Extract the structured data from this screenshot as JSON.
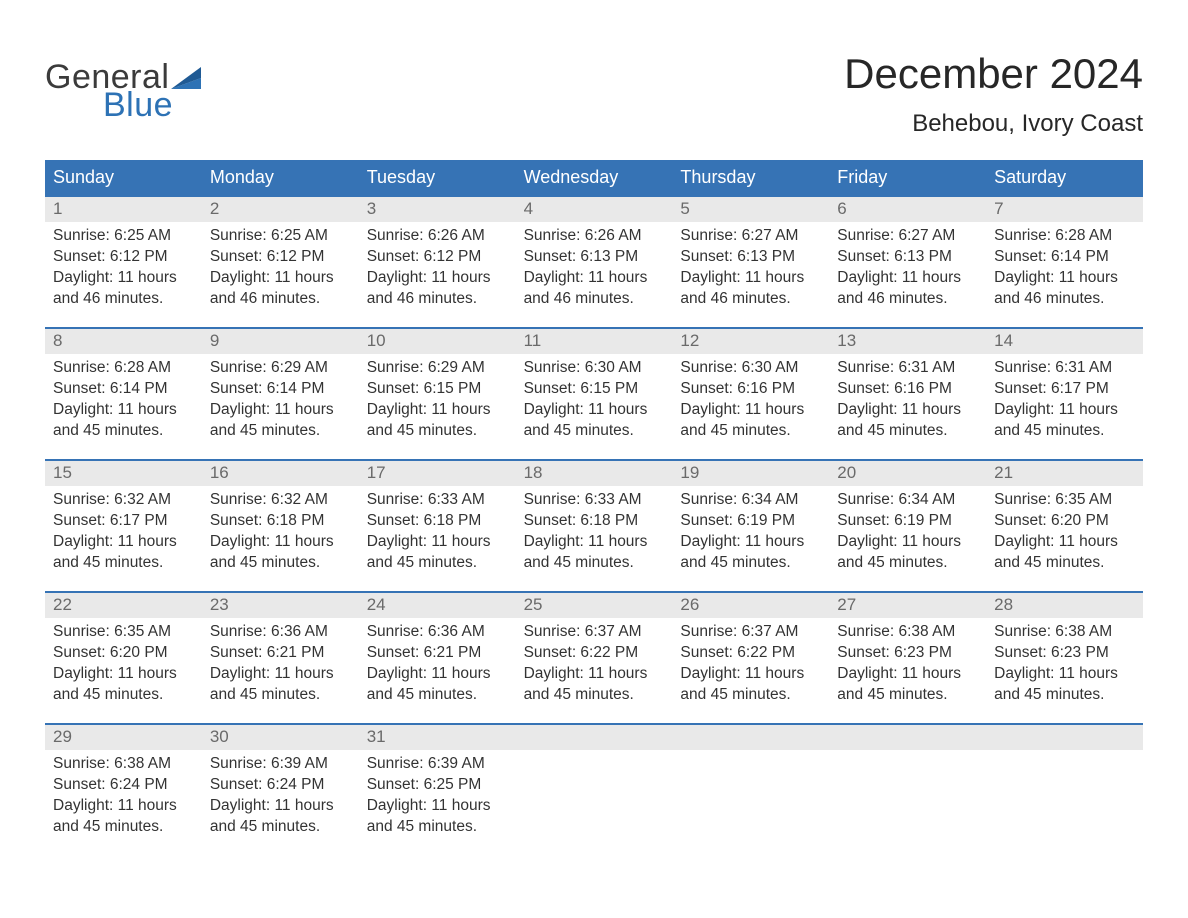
{
  "logo": {
    "word1": "General",
    "word2": "Blue",
    "color_dark": "#3b3b3b",
    "color_blue": "#2d72b5"
  },
  "title": {
    "month_year": "December 2024",
    "location": "Behebou, Ivory Coast"
  },
  "colors": {
    "header_bg": "#3673b5",
    "header_text": "#ffffff",
    "row_divider": "#3673b5",
    "daynum_bg": "#e9e9e9",
    "daynum_text": "#6a6a6a",
    "body_text": "#333333",
    "page_bg": "#ffffff"
  },
  "typography": {
    "title_fontsize": 42,
    "location_fontsize": 24,
    "weekday_fontsize": 18,
    "daynum_fontsize": 17,
    "body_fontsize": 15.5,
    "font_family": "Arial"
  },
  "weekdays": [
    "Sunday",
    "Monday",
    "Tuesday",
    "Wednesday",
    "Thursday",
    "Friday",
    "Saturday"
  ],
  "labels": {
    "sunrise": "Sunrise:",
    "sunset": "Sunset:",
    "daylight": "Daylight:"
  },
  "weeks": [
    [
      {
        "day": "1",
        "sunrise": "6:25 AM",
        "sunset": "6:12 PM",
        "daylight": "11 hours and 46 minutes."
      },
      {
        "day": "2",
        "sunrise": "6:25 AM",
        "sunset": "6:12 PM",
        "daylight": "11 hours and 46 minutes."
      },
      {
        "day": "3",
        "sunrise": "6:26 AM",
        "sunset": "6:12 PM",
        "daylight": "11 hours and 46 minutes."
      },
      {
        "day": "4",
        "sunrise": "6:26 AM",
        "sunset": "6:13 PM",
        "daylight": "11 hours and 46 minutes."
      },
      {
        "day": "5",
        "sunrise": "6:27 AM",
        "sunset": "6:13 PM",
        "daylight": "11 hours and 46 minutes."
      },
      {
        "day": "6",
        "sunrise": "6:27 AM",
        "sunset": "6:13 PM",
        "daylight": "11 hours and 46 minutes."
      },
      {
        "day": "7",
        "sunrise": "6:28 AM",
        "sunset": "6:14 PM",
        "daylight": "11 hours and 46 minutes."
      }
    ],
    [
      {
        "day": "8",
        "sunrise": "6:28 AM",
        "sunset": "6:14 PM",
        "daylight": "11 hours and 45 minutes."
      },
      {
        "day": "9",
        "sunrise": "6:29 AM",
        "sunset": "6:14 PM",
        "daylight": "11 hours and 45 minutes."
      },
      {
        "day": "10",
        "sunrise": "6:29 AM",
        "sunset": "6:15 PM",
        "daylight": "11 hours and 45 minutes."
      },
      {
        "day": "11",
        "sunrise": "6:30 AM",
        "sunset": "6:15 PM",
        "daylight": "11 hours and 45 minutes."
      },
      {
        "day": "12",
        "sunrise": "6:30 AM",
        "sunset": "6:16 PM",
        "daylight": "11 hours and 45 minutes."
      },
      {
        "day": "13",
        "sunrise": "6:31 AM",
        "sunset": "6:16 PM",
        "daylight": "11 hours and 45 minutes."
      },
      {
        "day": "14",
        "sunrise": "6:31 AM",
        "sunset": "6:17 PM",
        "daylight": "11 hours and 45 minutes."
      }
    ],
    [
      {
        "day": "15",
        "sunrise": "6:32 AM",
        "sunset": "6:17 PM",
        "daylight": "11 hours and 45 minutes."
      },
      {
        "day": "16",
        "sunrise": "6:32 AM",
        "sunset": "6:18 PM",
        "daylight": "11 hours and 45 minutes."
      },
      {
        "day": "17",
        "sunrise": "6:33 AM",
        "sunset": "6:18 PM",
        "daylight": "11 hours and 45 minutes."
      },
      {
        "day": "18",
        "sunrise": "6:33 AM",
        "sunset": "6:18 PM",
        "daylight": "11 hours and 45 minutes."
      },
      {
        "day": "19",
        "sunrise": "6:34 AM",
        "sunset": "6:19 PM",
        "daylight": "11 hours and 45 minutes."
      },
      {
        "day": "20",
        "sunrise": "6:34 AM",
        "sunset": "6:19 PM",
        "daylight": "11 hours and 45 minutes."
      },
      {
        "day": "21",
        "sunrise": "6:35 AM",
        "sunset": "6:20 PM",
        "daylight": "11 hours and 45 minutes."
      }
    ],
    [
      {
        "day": "22",
        "sunrise": "6:35 AM",
        "sunset": "6:20 PM",
        "daylight": "11 hours and 45 minutes."
      },
      {
        "day": "23",
        "sunrise": "6:36 AM",
        "sunset": "6:21 PM",
        "daylight": "11 hours and 45 minutes."
      },
      {
        "day": "24",
        "sunrise": "6:36 AM",
        "sunset": "6:21 PM",
        "daylight": "11 hours and 45 minutes."
      },
      {
        "day": "25",
        "sunrise": "6:37 AM",
        "sunset": "6:22 PM",
        "daylight": "11 hours and 45 minutes."
      },
      {
        "day": "26",
        "sunrise": "6:37 AM",
        "sunset": "6:22 PM",
        "daylight": "11 hours and 45 minutes."
      },
      {
        "day": "27",
        "sunrise": "6:38 AM",
        "sunset": "6:23 PM",
        "daylight": "11 hours and 45 minutes."
      },
      {
        "day": "28",
        "sunrise": "6:38 AM",
        "sunset": "6:23 PM",
        "daylight": "11 hours and 45 minutes."
      }
    ],
    [
      {
        "day": "29",
        "sunrise": "6:38 AM",
        "sunset": "6:24 PM",
        "daylight": "11 hours and 45 minutes."
      },
      {
        "day": "30",
        "sunrise": "6:39 AM",
        "sunset": "6:24 PM",
        "daylight": "11 hours and 45 minutes."
      },
      {
        "day": "31",
        "sunrise": "6:39 AM",
        "sunset": "6:25 PM",
        "daylight": "11 hours and 45 minutes."
      },
      {
        "day": "",
        "empty": true
      },
      {
        "day": "",
        "empty": true
      },
      {
        "day": "",
        "empty": true
      },
      {
        "day": "",
        "empty": true
      }
    ]
  ]
}
